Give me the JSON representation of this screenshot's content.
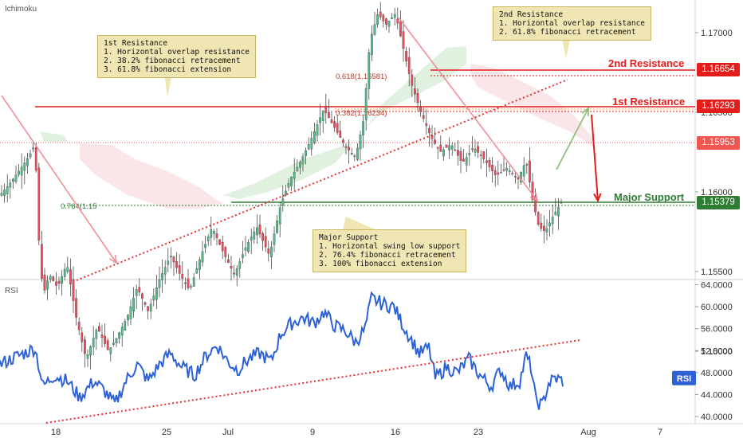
{
  "indicator_top": "Ichimoku",
  "indicator_bottom": "RSI",
  "levels": {
    "resistance2": {
      "label": "2nd Resistance",
      "price": "1.16654",
      "color": "#e31c1c"
    },
    "resistance1": {
      "label": "1st Resistance",
      "price": "1.16293",
      "color": "#e31c1c"
    },
    "support": {
      "label": "Major Support",
      "price": "1.15379",
      "color": "#2e7d32"
    },
    "current": {
      "price": "1.15953",
      "color": "#f2544f"
    }
  },
  "callouts": {
    "res1": "1st Resistance\n1. Horizontal overlap resistance\n2. 38.2% fibonacci retracement\n3. 61.8% fibonacci extension",
    "res2": "2nd Resistance\n1. Horizontal overlap resistance\n2. 61.8% fibonacci retracement",
    "support": "Major Support\n1. Horizontal swing low support\n2. 76.4% fibonacci retracement\n3. 100% fibonacci extension"
  },
  "fib_labels": {
    "f618": "0.618(1.16581)",
    "f382": "0.382(1.16234)",
    "f764": "0.764(1.15"
  },
  "rsi_badge": "RSI",
  "colors": {
    "up": "#53b987",
    "down": "#eb4d5c",
    "rsi": "#2d62d6",
    "trend": "#e83030",
    "arrow_pink": "#ef8d99",
    "arrow_green": "#8fbf7a"
  },
  "chart_data": {
    "type": "candlestick",
    "price_axis": {
      "ticks": [
        "1.17000",
        "1.16500",
        "1.16000",
        "1.15500",
        "1.15000"
      ],
      "ylim": [
        1.1455,
        1.173
      ]
    },
    "rsi_axis": {
      "ticks": [
        "64.0000",
        "60.0000",
        "56.0000",
        "52.0000",
        "48.0000",
        "44.0000",
        "40.0000"
      ],
      "ylim": [
        39.5,
        64.5
      ]
    },
    "x_axis": {
      "ticks": [
        "18",
        "25",
        "Jul",
        "9",
        "16",
        "23",
        "Aug",
        "7"
      ]
    },
    "price_path": [
      [
        0,
        1.1598
      ],
      [
        12,
        1.1605
      ],
      [
        22,
        1.1612
      ],
      [
        36,
        1.1622
      ],
      [
        44,
        1.163
      ],
      [
        48,
        1.1575
      ],
      [
        54,
        1.1535
      ],
      [
        62,
        1.1548
      ],
      [
        72,
        1.154
      ],
      [
        84,
        1.1555
      ],
      [
        96,
        1.152
      ],
      [
        108,
        1.1495
      ],
      [
        122,
        1.1515
      ],
      [
        136,
        1.15
      ],
      [
        146,
        1.1508
      ],
      [
        160,
        1.1522
      ],
      [
        172,
        1.154
      ],
      [
        186,
        1.1525
      ],
      [
        200,
        1.1545
      ],
      [
        214,
        1.156
      ],
      [
        226,
        1.1548
      ],
      [
        238,
        1.1538
      ],
      [
        252,
        1.156
      ],
      [
        266,
        1.1578
      ],
      [
        280,
        1.1562
      ],
      [
        294,
        1.1548
      ],
      [
        308,
        1.1565
      ],
      [
        322,
        1.1578
      ],
      [
        338,
        1.156
      ],
      [
        352,
        1.1592
      ],
      [
        364,
        1.1608
      ],
      [
        378,
        1.162
      ],
      [
        392,
        1.1635
      ],
      [
        406,
        1.1652
      ],
      [
        420,
        1.164
      ],
      [
        434,
        1.1628
      ],
      [
        446,
        1.1622
      ],
      [
        456,
        1.1645
      ],
      [
        464,
        1.1695
      ],
      [
        474,
        1.1712
      ],
      [
        484,
        1.1705
      ],
      [
        496,
        1.1712
      ],
      [
        506,
        1.169
      ],
      [
        516,
        1.1668
      ],
      [
        528,
        1.165
      ],
      [
        540,
        1.1635
      ],
      [
        552,
        1.1625
      ],
      [
        566,
        1.163
      ],
      [
        580,
        1.1618
      ],
      [
        594,
        1.1628
      ],
      [
        608,
        1.162
      ],
      [
        622,
        1.161
      ],
      [
        636,
        1.1615
      ],
      [
        650,
        1.1608
      ],
      [
        660,
        1.162
      ],
      [
        668,
        1.1595
      ],
      [
        676,
        1.1578
      ],
      [
        684,
        1.1575
      ],
      [
        694,
        1.1585
      ],
      [
        706,
        1.1595
      ]
    ],
    "rsi_path": [
      [
        0,
        49.5
      ],
      [
        14,
        50.5
      ],
      [
        30,
        51.5
      ],
      [
        44,
        52.5
      ],
      [
        54,
        45.5
      ],
      [
        68,
        47.5
      ],
      [
        84,
        46.5
      ],
      [
        100,
        43.5
      ],
      [
        118,
        46.5
      ],
      [
        132,
        44.5
      ],
      [
        144,
        42.2
      ],
      [
        158,
        46.5
      ],
      [
        172,
        49.5
      ],
      [
        186,
        46.5
      ],
      [
        200,
        49.5
      ],
      [
        214,
        51.5
      ],
      [
        228,
        49.0
      ],
      [
        244,
        47.5
      ],
      [
        258,
        51.0
      ],
      [
        272,
        53.0
      ],
      [
        286,
        50.0
      ],
      [
        298,
        48.5
      ],
      [
        312,
        50.5
      ],
      [
        326,
        51.5
      ],
      [
        340,
        50.0
      ],
      [
        352,
        55.0
      ],
      [
        366,
        57.0
      ],
      [
        380,
        58.0
      ],
      [
        394,
        57.0
      ],
      [
        406,
        59.0
      ],
      [
        420,
        56.5
      ],
      [
        434,
        55.5
      ],
      [
        446,
        53.5
      ],
      [
        458,
        56.0
      ],
      [
        466,
        61.5
      ],
      [
        480,
        60.5
      ],
      [
        494,
        60.0
      ],
      [
        506,
        56.5
      ],
      [
        516,
        54.0
      ],
      [
        526,
        51.5
      ],
      [
        538,
        52.5
      ],
      [
        546,
        47.0
      ],
      [
        560,
        49.0
      ],
      [
        574,
        48.0
      ],
      [
        588,
        50.5
      ],
      [
        602,
        47.5
      ],
      [
        616,
        45.5
      ],
      [
        628,
        48.5
      ],
      [
        640,
        45.5
      ],
      [
        652,
        46.5
      ],
      [
        660,
        51.0
      ],
      [
        666,
        49.0
      ],
      [
        672,
        43.0
      ],
      [
        680,
        42.0
      ],
      [
        688,
        46.0
      ],
      [
        696,
        47.0
      ],
      [
        706,
        46.5
      ]
    ]
  }
}
